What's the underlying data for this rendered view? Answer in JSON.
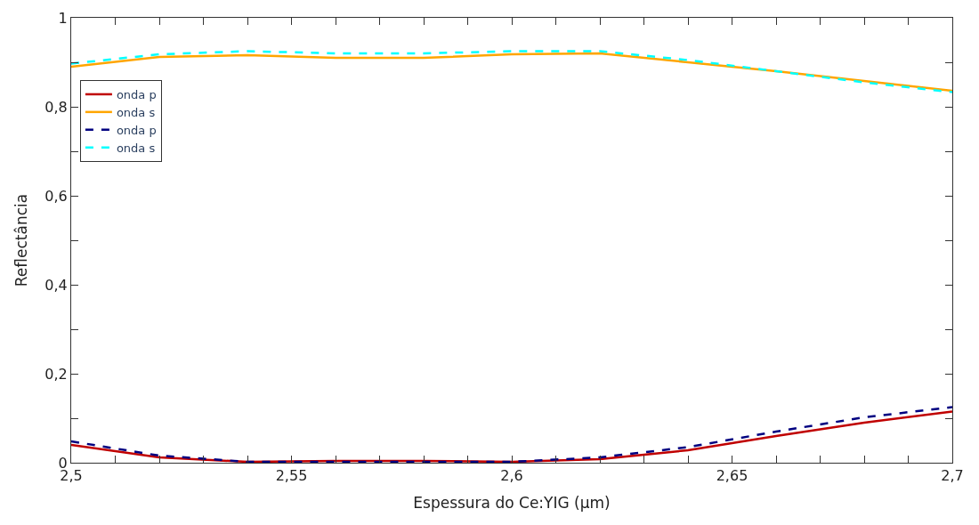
{
  "chart_data": {
    "type": "line",
    "xlabel": "Espessura do Ce:YIG (µm)",
    "ylabel": "Reflectância",
    "x": [
      2.5,
      2.52,
      2.54,
      2.56,
      2.58,
      2.6,
      2.62,
      2.64,
      2.66,
      2.68,
      2.7
    ],
    "series": [
      {
        "name": "onda p",
        "color": "#c00000",
        "line_style": "solid",
        "values": [
          0.04,
          0.012,
          0.002,
          0.004,
          0.004,
          0.002,
          0.008,
          0.028,
          0.06,
          0.09,
          0.115
        ]
      },
      {
        "name": "onda s",
        "color": "#ffa500",
        "line_style": "solid",
        "values": [
          0.89,
          0.912,
          0.916,
          0.91,
          0.91,
          0.918,
          0.92,
          0.9,
          0.88,
          0.858,
          0.836
        ]
      },
      {
        "name": "onda p",
        "color": "#000080",
        "line_style": "dashed",
        "values": [
          0.048,
          0.016,
          0.002,
          0.002,
          0.002,
          0.002,
          0.012,
          0.035,
          0.07,
          0.102,
          0.125
        ]
      },
      {
        "name": "onda s",
        "color": "#00ffff",
        "line_style": "dashed",
        "values": [
          0.897,
          0.918,
          0.925,
          0.92,
          0.92,
          0.925,
          0.925,
          0.905,
          0.88,
          0.855,
          0.833
        ]
      }
    ],
    "xlim": [
      2.5,
      2.7
    ],
    "xticks": [
      {
        "value": 2.5,
        "label": "2,5"
      },
      {
        "value": 2.51,
        "label": null
      },
      {
        "value": 2.52,
        "label": null
      },
      {
        "value": 2.53,
        "label": null
      },
      {
        "value": 2.54,
        "label": null
      },
      {
        "value": 2.55,
        "label": "2,55"
      },
      {
        "value": 2.56,
        "label": null
      },
      {
        "value": 2.57,
        "label": null
      },
      {
        "value": 2.58,
        "label": null
      },
      {
        "value": 2.59,
        "label": null
      },
      {
        "value": 2.6,
        "label": "2,6"
      },
      {
        "value": 2.61,
        "label": null
      },
      {
        "value": 2.62,
        "label": null
      },
      {
        "value": 2.63,
        "label": null
      },
      {
        "value": 2.64,
        "label": null
      },
      {
        "value": 2.65,
        "label": "2,65"
      },
      {
        "value": 2.66,
        "label": null
      },
      {
        "value": 2.67,
        "label": null
      },
      {
        "value": 2.68,
        "label": null
      },
      {
        "value": 2.69,
        "label": null
      },
      {
        "value": 2.7,
        "label": "2,7"
      }
    ],
    "ylim": [
      0,
      1
    ],
    "yticks": [
      0,
      {
        "value": 0.1,
        "label": null
      },
      {
        "value": 0.2,
        "label": "0,2"
      },
      {
        "value": 0.3,
        "label": null
      },
      {
        "value": 0.4,
        "label": "0,4"
      },
      {
        "value": 0.5,
        "label": null
      },
      {
        "value": 0.6,
        "label": "0,6"
      },
      {
        "value": 0.7,
        "label": null
      },
      {
        "value": 0.8,
        "label": "0,8"
      },
      {
        "value": 0.9,
        "label": null
      },
      1
    ],
    "legend": "top left",
    "marker": "none"
  }
}
